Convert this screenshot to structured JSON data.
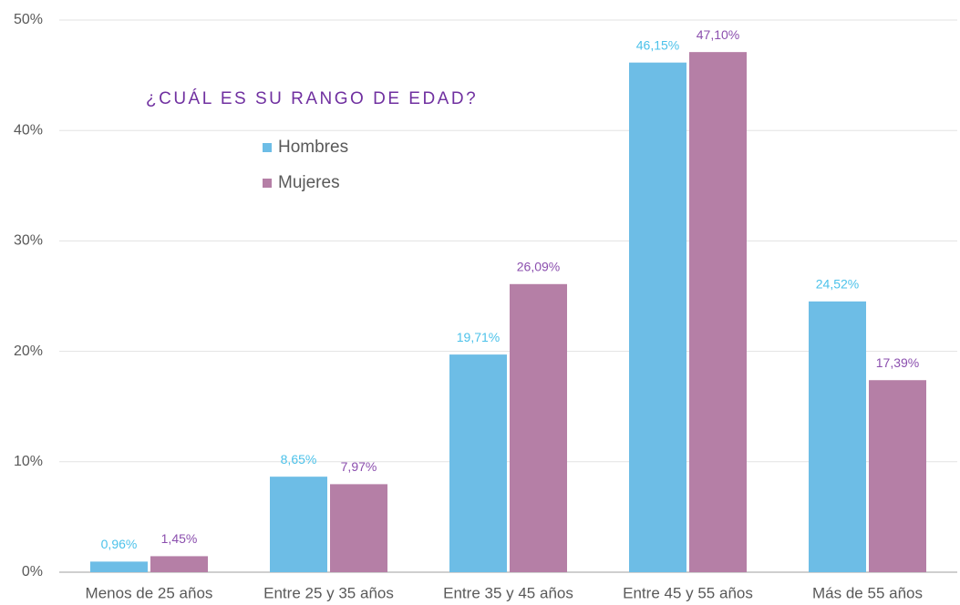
{
  "chart_data": {
    "type": "bar",
    "title": "¿CUÁL ES SU RANGO DE EDAD?",
    "categories": [
      "Menos de 25 años",
      "Entre 25 y 35 años",
      "Entre 35 y 45 años",
      "Entre 45 y 55 años",
      "Más de 55 años"
    ],
    "series": [
      {
        "name": "Hombres",
        "color": "#6dbde6",
        "label_color": "#4cc2ea",
        "values": [
          0.96,
          8.65,
          19.71,
          46.15,
          24.52
        ],
        "value_labels": [
          "0,96%",
          "8,65%",
          "19,71%",
          "46,15%",
          "24,52%"
        ]
      },
      {
        "name": "Mujeres",
        "color": "#b57fa6",
        "label_color": "#8b4fae",
        "values": [
          1.45,
          7.97,
          26.09,
          47.1,
          17.39
        ],
        "value_labels": [
          "1,45%",
          "7,97%",
          "26,09%",
          "47,10%",
          "17,39%"
        ]
      }
    ],
    "ylim": [
      0,
      50
    ],
    "yticks": [
      {
        "value": 0,
        "label": "0%"
      },
      {
        "value": 10,
        "label": "10%"
      },
      {
        "value": 20,
        "label": "20%"
      },
      {
        "value": 30,
        "label": "30%"
      },
      {
        "value": 40,
        "label": "40%"
      },
      {
        "value": 50,
        "label": "50%"
      }
    ],
    "grid": true,
    "legend": "upper left"
  }
}
